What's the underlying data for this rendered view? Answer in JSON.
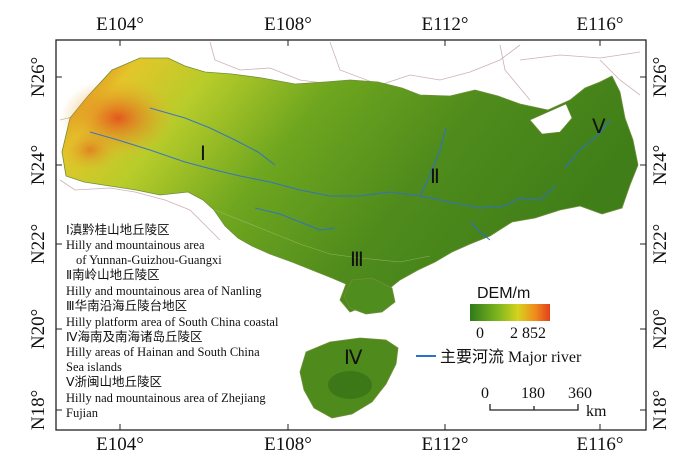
{
  "map": {
    "axes": {
      "top_ticks": [
        "E104°",
        "E108°",
        "E112°",
        "E116°"
      ],
      "bottom_ticks": [
        "E104°",
        "E108°",
        "E112°",
        "E116°"
      ],
      "left_ticks": [
        "N26°",
        "N24°",
        "N22°",
        "N20°",
        "N18°"
      ],
      "right_ticks": [
        "N26°",
        "N24°",
        "N22°",
        "N20°",
        "N18°"
      ]
    },
    "region_markers": [
      "Ⅰ",
      "Ⅱ",
      "Ⅲ",
      "Ⅳ",
      "Ⅴ"
    ],
    "region_legend": [
      {
        "cn": "Ⅰ滇黔桂山地丘陵区",
        "en": [
          "Hilly and mountainous area",
          "of Yunnan-Guizhou-Guangxi"
        ]
      },
      {
        "cn": "Ⅱ南岭山地丘陵区",
        "en": [
          "Hilly and mountainous area of Nanling"
        ]
      },
      {
        "cn": "Ⅲ华南沿海丘陵台地区",
        "en": [
          "Hilly platform area of South China coastal"
        ]
      },
      {
        "cn": "Ⅳ海南及南海诸岛丘陵区",
        "en": [
          "Hilly areas of Hainan and South China",
          "Sea islands"
        ]
      },
      {
        "cn": "Ⅴ浙闽山地丘陵区",
        "en": [
          "Hilly nad mountainous area of Zhejiang",
          "Fujian"
        ]
      }
    ],
    "dem_legend": {
      "title": "DEM/m",
      "min": "0",
      "max": "2 852",
      "colors": [
        "#2f7a1a",
        "#7fb61f",
        "#d6d21e",
        "#f08a1c",
        "#e2401c"
      ]
    },
    "river_legend": {
      "label": "主要河流 Major river",
      "color": "#2f6fd0"
    },
    "scale_bar": {
      "ticks": [
        "0",
        "180",
        "360"
      ],
      "unit": "km"
    }
  }
}
